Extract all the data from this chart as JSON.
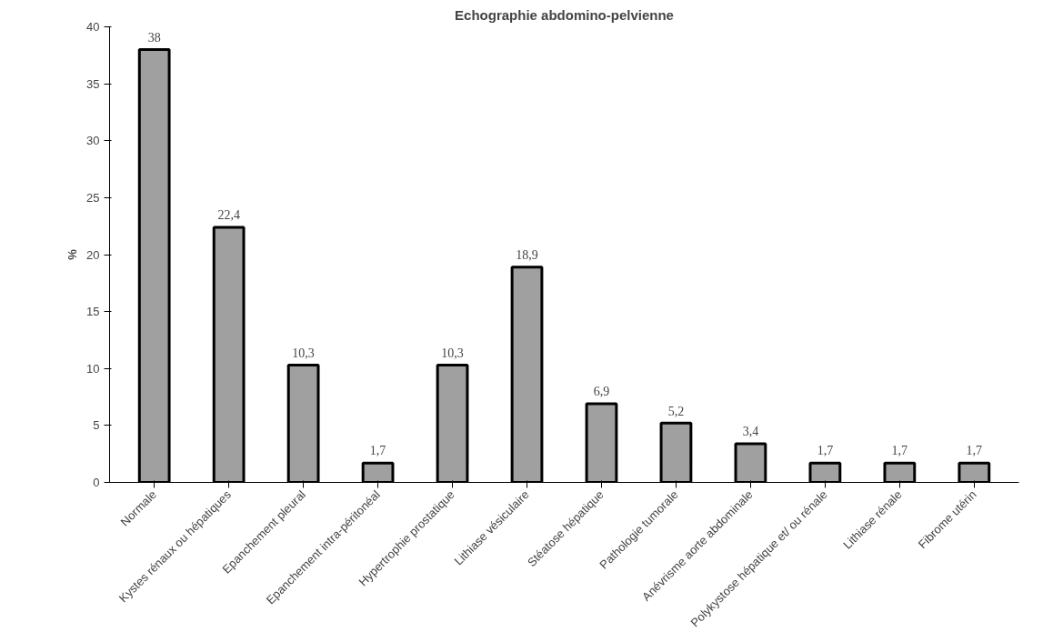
{
  "chart_data": {
    "type": "bar",
    "title": "Echographie abdomino-pelvienne",
    "ylabel": "%",
    "categories": [
      "Normale",
      "Kystes rénaux ou hépatiques",
      "Epanchement pleural",
      "Epanchement intra-péritonéal",
      "Hypertrophie prostatique",
      "Lithiase vésiculaire",
      "Stéatose hépatique",
      "Pathologie tumorale",
      "Anévrisme aorte abdominale",
      "Polykystose hépatique et/ ou rénale",
      "Lithiase rénale",
      "Fibrome utérin"
    ],
    "values": [
      38,
      22.4,
      10.3,
      1.7,
      10.3,
      18.9,
      6.9,
      5.2,
      3.4,
      1.7,
      1.7,
      1.7
    ],
    "value_labels": [
      "38",
      "22,4",
      "10,3",
      "1,7",
      "10,3",
      "18,9",
      "6,9",
      "5,2",
      "3,4",
      "1,7",
      "1,7",
      "1,7"
    ],
    "color": "#a0a0a0",
    "ylim": [
      0,
      40
    ],
    "yticks": [
      0,
      5,
      10,
      15,
      20,
      25,
      30,
      35,
      40
    ],
    "grid": false
  }
}
